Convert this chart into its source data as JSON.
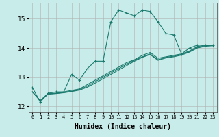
{
  "xlabel": "Humidex (Indice chaleur)",
  "ylabel": "",
  "bg_color": "#c8ece9",
  "grid_color": "#b0b0b0",
  "line_color": "#1a7a6e",
  "xlim": [
    -0.5,
    23.5
  ],
  "ylim": [
    11.8,
    15.55
  ],
  "yticks": [
    12,
    13,
    14,
    15
  ],
  "xtick_labels": [
    "0",
    "1",
    "2",
    "3",
    "4",
    "5",
    "6",
    "7",
    "8",
    "9",
    "10",
    "11",
    "12",
    "13",
    "14",
    "15",
    "16",
    "17",
    "18",
    "19",
    "20",
    "21",
    "22",
    "23"
  ],
  "series": [
    {
      "x": [
        0,
        1,
        2,
        3,
        4,
        5,
        6,
        7,
        8,
        9,
        10,
        11,
        12,
        13,
        14,
        15,
        16,
        17,
        18,
        19,
        20,
        21,
        22,
        23
      ],
      "y": [
        12.65,
        12.15,
        12.45,
        12.5,
        12.5,
        13.1,
        12.9,
        13.3,
        13.55,
        13.55,
        14.9,
        15.3,
        15.2,
        15.1,
        15.3,
        15.25,
        14.9,
        14.5,
        14.45,
        13.8,
        14.0,
        14.1,
        14.1,
        14.1
      ],
      "marker": "+"
    },
    {
      "x": [
        0,
        1,
        2,
        3,
        4,
        5,
        6,
        7,
        8,
        9,
        10,
        11,
        12,
        13,
        14,
        15,
        16,
        17,
        18,
        19,
        20,
        21,
        22,
        23
      ],
      "y": [
        12.5,
        12.2,
        12.45,
        12.45,
        12.5,
        12.55,
        12.6,
        12.75,
        12.9,
        13.05,
        13.2,
        13.35,
        13.5,
        13.6,
        13.75,
        13.85,
        13.65,
        13.7,
        13.75,
        13.8,
        13.9,
        14.05,
        14.1,
        14.1
      ],
      "marker": null
    },
    {
      "x": [
        0,
        1,
        2,
        3,
        4,
        5,
        6,
        7,
        8,
        9,
        10,
        11,
        12,
        13,
        14,
        15,
        16,
        17,
        18,
        19,
        20,
        21,
        22,
        23
      ],
      "y": [
        12.5,
        12.2,
        12.43,
        12.45,
        12.48,
        12.52,
        12.58,
        12.7,
        12.85,
        13.0,
        13.15,
        13.3,
        13.45,
        13.58,
        13.7,
        13.8,
        13.6,
        13.68,
        13.72,
        13.78,
        13.88,
        14.02,
        14.08,
        14.1
      ],
      "marker": null
    },
    {
      "x": [
        0,
        1,
        2,
        3,
        4,
        5,
        6,
        7,
        8,
        9,
        10,
        11,
        12,
        13,
        14,
        15,
        16,
        17,
        18,
        19,
        20,
        21,
        22,
        23
      ],
      "y": [
        12.5,
        12.2,
        12.42,
        12.44,
        12.47,
        12.51,
        12.56,
        12.66,
        12.8,
        12.95,
        13.1,
        13.25,
        13.4,
        13.55,
        13.68,
        13.78,
        13.58,
        13.66,
        13.7,
        13.76,
        13.86,
        14.0,
        14.06,
        14.08
      ],
      "marker": null
    }
  ]
}
